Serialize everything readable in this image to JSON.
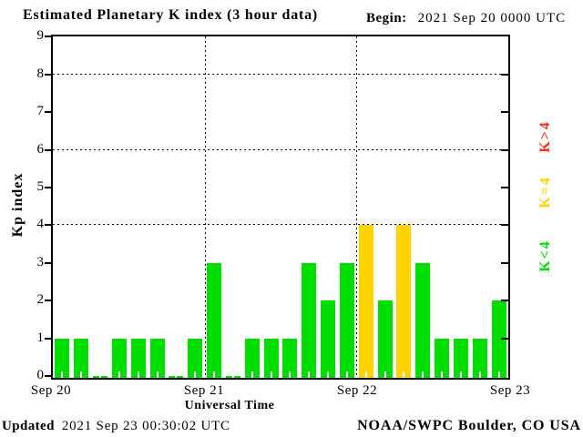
{
  "title": "Estimated Planetary K index (3 hour data)",
  "begin": {
    "label": "Begin:",
    "value": "2021 Sep 20 0000 UTC"
  },
  "y_axis": {
    "label": "Kp index"
  },
  "x_axis": {
    "label": "Universal Time",
    "day_labels": [
      "Sep 20",
      "Sep 21",
      "Sep 22",
      "Sep 23"
    ]
  },
  "legend": [
    {
      "label": "K>4",
      "color": "#f03020"
    },
    {
      "label": "K=4",
      "color": "#ffd300"
    },
    {
      "label": "K<4",
      "color": "#00dd00"
    }
  ],
  "footer": {
    "updated_label": "Updated",
    "updated_value": "2021 Sep 23 00:30:02 UTC",
    "source": "NOAA/SWPC Boulder, CO USA"
  },
  "chart_data": {
    "type": "bar",
    "title": "Estimated Planetary K index (3 hour data)",
    "begin": "2021 Sep 20 0000 UTC",
    "xlabel": "Universal Time",
    "ylabel": "Kp index",
    "ylim": [
      0,
      9
    ],
    "y_ticks": [
      0,
      1,
      2,
      3,
      4,
      5,
      6,
      7,
      8,
      9
    ],
    "grid_y_dotted": [
      4,
      6,
      8
    ],
    "interval_hours": 3,
    "day_boundaries": [
      "Sep 20",
      "Sep 21",
      "Sep 22",
      "Sep 23"
    ],
    "categories": [
      "Sep 20 0000-0300",
      "Sep 20 0300-0600",
      "Sep 20 0600-0900",
      "Sep 20 0900-1200",
      "Sep 20 1200-1500",
      "Sep 20 1500-1800",
      "Sep 20 1800-2100",
      "Sep 20 2100-2400",
      "Sep 21 0000-0300",
      "Sep 21 0300-0600",
      "Sep 21 0600-0900",
      "Sep 21 0900-1200",
      "Sep 21 1200-1500",
      "Sep 21 1500-1800",
      "Sep 21 1800-2100",
      "Sep 21 2100-2400",
      "Sep 22 0000-0300",
      "Sep 22 0300-0600",
      "Sep 22 0600-0900",
      "Sep 22 0900-1200",
      "Sep 22 1200-1500",
      "Sep 22 1500-1800",
      "Sep 22 1800-2100",
      "Sep 22 2100-2400"
    ],
    "values": [
      1,
      1,
      0,
      1,
      1,
      1,
      0,
      1,
      3,
      0,
      1,
      1,
      1,
      3,
      2,
      3,
      4,
      2,
      4,
      3,
      1,
      1,
      1,
      2
    ],
    "color_rule": {
      "lt4": "#00dd00",
      "eq4": "#ffd300",
      "gt4": "#f03020"
    },
    "grid": "dotted-partial",
    "legend_position": "right-rotated"
  }
}
